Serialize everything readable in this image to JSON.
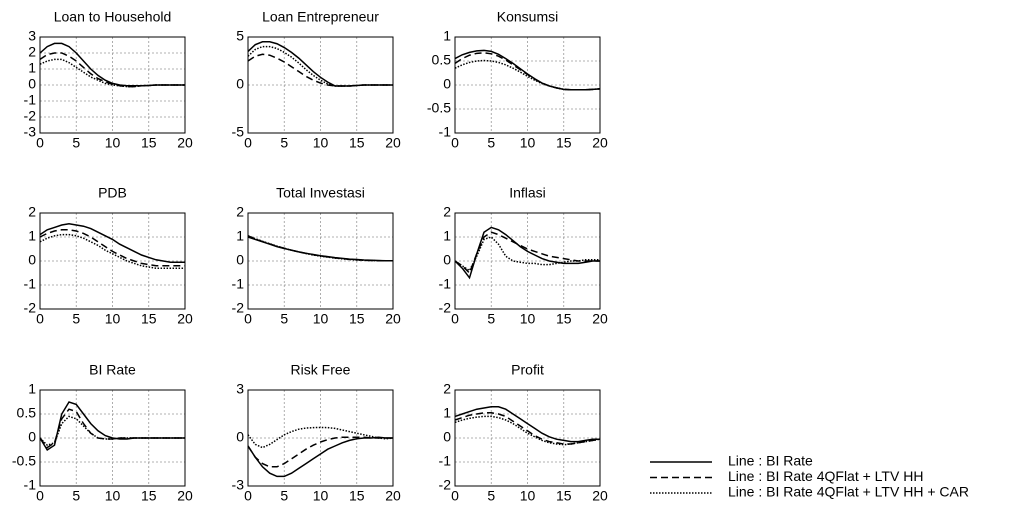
{
  "chart_data": [
    {
      "type": "line",
      "title": "Loan to Household",
      "x": [
        0,
        1,
        2,
        3,
        4,
        5,
        6,
        7,
        8,
        9,
        10,
        11,
        12,
        13,
        14,
        15,
        16,
        17,
        18,
        19,
        20
      ],
      "xlim": [
        0,
        20
      ],
      "xticks": [
        0,
        5,
        10,
        15,
        20
      ],
      "ylim": [
        -3,
        3
      ],
      "yticks": [
        -3,
        -2,
        -1,
        0,
        1,
        2,
        3
      ],
      "grid": true,
      "series": [
        {
          "name": "Line : BI Rate",
          "dash": "solid",
          "color": "#000000",
          "values": [
            2.0,
            2.4,
            2.6,
            2.6,
            2.4,
            2.0,
            1.5,
            1.0,
            0.6,
            0.3,
            0.1,
            0,
            -0.05,
            -0.05,
            -0.05,
            -0.03,
            0,
            0,
            0,
            0,
            0
          ]
        },
        {
          "name": "Line : BI Rate 4QFlat + LTV HH",
          "dash": "dashed",
          "color": "#000000",
          "values": [
            1.6,
            1.9,
            2.0,
            2.0,
            1.8,
            1.5,
            1.1,
            0.7,
            0.4,
            0.2,
            0.05,
            -0.05,
            -0.1,
            -0.1,
            -0.05,
            -0.03,
            0,
            0,
            0,
            0,
            0
          ]
        },
        {
          "name": "Line : BI Rate 4QFlat + LTV HH + CAR",
          "dash": "dotted",
          "color": "#000000",
          "values": [
            1.3,
            1.5,
            1.6,
            1.6,
            1.4,
            1.1,
            0.8,
            0.5,
            0.3,
            0.1,
            0,
            -0.05,
            -0.1,
            -0.1,
            -0.05,
            -0.03,
            0,
            0,
            0,
            0,
            0
          ]
        }
      ]
    },
    {
      "type": "line",
      "title": "Loan Entrepreneur",
      "x": [
        0,
        1,
        2,
        3,
        4,
        5,
        6,
        7,
        8,
        9,
        10,
        11,
        12,
        13,
        14,
        15,
        16,
        17,
        18,
        19,
        20
      ],
      "xlim": [
        0,
        20
      ],
      "xticks": [
        0,
        5,
        10,
        15,
        20
      ],
      "ylim": [
        -5,
        5
      ],
      "yticks": [
        -5,
        0,
        5
      ],
      "grid": true,
      "series": [
        {
          "dash": "solid",
          "color": "#000000",
          "values": [
            3.5,
            4.2,
            4.5,
            4.5,
            4.3,
            3.9,
            3.4,
            2.8,
            2.1,
            1.4,
            0.8,
            0.3,
            -0.1,
            -0.1,
            -0.1,
            -0.05,
            0,
            0,
            0,
            0,
            0
          ]
        },
        {
          "dash": "dashed",
          "color": "#000000",
          "values": [
            2.5,
            3.0,
            3.2,
            3.1,
            2.8,
            2.4,
            1.9,
            1.4,
            0.9,
            0.5,
            0.2,
            0,
            -0.1,
            -0.1,
            -0.1,
            -0.05,
            0,
            0,
            0,
            0,
            0
          ]
        },
        {
          "dash": "dotted",
          "color": "#000000",
          "values": [
            3.0,
            3.7,
            4.0,
            4.0,
            3.8,
            3.4,
            2.9,
            2.3,
            1.6,
            1.0,
            0.5,
            0.1,
            -0.1,
            -0.1,
            -0.1,
            -0.05,
            0,
            0,
            0,
            0,
            0
          ]
        }
      ]
    },
    {
      "type": "line",
      "title": "Konsumsi",
      "x": [
        0,
        1,
        2,
        3,
        4,
        5,
        6,
        7,
        8,
        9,
        10,
        11,
        12,
        13,
        14,
        15,
        16,
        17,
        18,
        19,
        20
      ],
      "xlim": [
        0,
        20
      ],
      "xticks": [
        0,
        5,
        10,
        15,
        20
      ],
      "ylim": [
        -1,
        1
      ],
      "yticks": [
        -1,
        -0.5,
        0,
        0.5,
        1
      ],
      "grid": true,
      "series": [
        {
          "dash": "solid",
          "color": "#000000",
          "values": [
            0.55,
            0.63,
            0.68,
            0.71,
            0.72,
            0.7,
            0.64,
            0.55,
            0.45,
            0.34,
            0.23,
            0.13,
            0.04,
            -0.02,
            -0.06,
            -0.09,
            -0.1,
            -0.1,
            -0.1,
            -0.09,
            -0.08
          ]
        },
        {
          "dash": "dashed",
          "color": "#000000",
          "values": [
            0.45,
            0.55,
            0.62,
            0.66,
            0.67,
            0.65,
            0.6,
            0.52,
            0.42,
            0.32,
            0.22,
            0.12,
            0.04,
            -0.02,
            -0.06,
            -0.09,
            -0.1,
            -0.1,
            -0.1,
            -0.09,
            -0.08
          ]
        },
        {
          "dash": "dotted",
          "color": "#000000",
          "values": [
            0.35,
            0.42,
            0.47,
            0.5,
            0.51,
            0.5,
            0.47,
            0.42,
            0.35,
            0.27,
            0.18,
            0.1,
            0.03,
            -0.02,
            -0.06,
            -0.09,
            -0.1,
            -0.1,
            -0.1,
            -0.09,
            -0.08
          ]
        }
      ]
    },
    {
      "type": "line",
      "title": "PDB",
      "x": [
        0,
        1,
        2,
        3,
        4,
        5,
        6,
        7,
        8,
        9,
        10,
        11,
        12,
        13,
        14,
        15,
        16,
        17,
        18,
        19,
        20
      ],
      "xlim": [
        0,
        20
      ],
      "xticks": [
        0,
        5,
        10,
        15,
        20
      ],
      "ylim": [
        -2,
        2
      ],
      "yticks": [
        -2,
        -1,
        0,
        1,
        2
      ],
      "grid": true,
      "series": [
        {
          "dash": "solid",
          "color": "#000000",
          "values": [
            1.1,
            1.3,
            1.4,
            1.5,
            1.55,
            1.5,
            1.45,
            1.35,
            1.2,
            1.05,
            0.9,
            0.7,
            0.55,
            0.4,
            0.25,
            0.15,
            0.05,
            0,
            -0.05,
            -0.05,
            -0.05
          ]
        },
        {
          "dash": "dashed",
          "color": "#000000",
          "values": [
            1.0,
            1.15,
            1.25,
            1.3,
            1.3,
            1.25,
            1.15,
            1.0,
            0.8,
            0.6,
            0.4,
            0.25,
            0.1,
            0,
            -0.1,
            -0.15,
            -0.2,
            -0.2,
            -0.2,
            -0.2,
            -0.2
          ]
        },
        {
          "dash": "dotted",
          "color": "#000000",
          "values": [
            0.8,
            0.95,
            1.05,
            1.1,
            1.1,
            1.05,
            0.95,
            0.8,
            0.65,
            0.45,
            0.3,
            0.15,
            0,
            -0.1,
            -0.2,
            -0.25,
            -0.3,
            -0.3,
            -0.3,
            -0.3,
            -0.3
          ]
        }
      ]
    },
    {
      "type": "line",
      "title": "Total Investasi",
      "x": [
        0,
        1,
        2,
        3,
        4,
        5,
        6,
        7,
        8,
        9,
        10,
        11,
        12,
        13,
        14,
        15,
        16,
        17,
        18,
        19,
        20
      ],
      "xlim": [
        0,
        20
      ],
      "xticks": [
        0,
        5,
        10,
        15,
        20
      ],
      "ylim": [
        -2,
        2
      ],
      "yticks": [
        -2,
        -1,
        0,
        1,
        2
      ],
      "grid": true,
      "series": [
        {
          "dash": "solid",
          "color": "#000000",
          "values": [
            1.0,
            0.9,
            0.8,
            0.7,
            0.6,
            0.52,
            0.45,
            0.38,
            0.32,
            0.27,
            0.22,
            0.18,
            0.14,
            0.11,
            0.08,
            0.06,
            0.04,
            0.03,
            0.02,
            0.01,
            0.01
          ]
        },
        {
          "dash": "dashed",
          "color": "#000000",
          "values": [
            1.05,
            0.92,
            0.81,
            0.71,
            0.61,
            0.53,
            0.45,
            0.38,
            0.32,
            0.26,
            0.21,
            0.17,
            0.13,
            0.1,
            0.07,
            0.05,
            0.03,
            0.02,
            0.01,
            0.01,
            0.01
          ]
        },
        {
          "dash": "dotted",
          "color": "#000000",
          "values": [
            1.05,
            0.93,
            0.82,
            0.72,
            0.62,
            0.53,
            0.45,
            0.38,
            0.31,
            0.25,
            0.2,
            0.16,
            0.12,
            0.09,
            0.06,
            0.04,
            0.03,
            0.02,
            0.01,
            0.01,
            0.01
          ]
        }
      ]
    },
    {
      "type": "line",
      "title": "Inflasi",
      "x": [
        0,
        1,
        2,
        3,
        4,
        5,
        6,
        7,
        8,
        9,
        10,
        11,
        12,
        13,
        14,
        15,
        16,
        17,
        18,
        19,
        20
      ],
      "xlim": [
        0,
        20
      ],
      "xticks": [
        0,
        5,
        10,
        15,
        20
      ],
      "ylim": [
        -2,
        2
      ],
      "yticks": [
        -2,
        -1,
        0,
        1,
        2
      ],
      "grid": true,
      "series": [
        {
          "dash": "solid",
          "color": "#000000",
          "values": [
            0,
            -0.3,
            -0.7,
            0.3,
            1.2,
            1.4,
            1.3,
            1.1,
            0.85,
            0.6,
            0.4,
            0.25,
            0.1,
            0,
            -0.05,
            -0.1,
            -0.1,
            -0.1,
            -0.05,
            0,
            0
          ]
        },
        {
          "dash": "dashed",
          "color": "#000000",
          "values": [
            0,
            -0.2,
            -0.5,
            0.3,
            1.0,
            1.2,
            1.1,
            0.95,
            0.8,
            0.65,
            0.5,
            0.4,
            0.3,
            0.2,
            0.15,
            0.1,
            0.05,
            0,
            0,
            0,
            0
          ]
        },
        {
          "dash": "dotted",
          "color": "#000000",
          "values": [
            0,
            -0.2,
            -0.4,
            0.2,
            0.9,
            1.0,
            0.7,
            0.2,
            0,
            -0.05,
            -0.1,
            -0.1,
            -0.15,
            -0.15,
            -0.1,
            -0.05,
            0,
            0,
            0.05,
            0.05,
            0.05
          ]
        }
      ]
    },
    {
      "type": "line",
      "title": "BI Rate",
      "x": [
        0,
        1,
        2,
        3,
        4,
        5,
        6,
        7,
        8,
        9,
        10,
        11,
        12,
        13,
        14,
        15,
        16,
        17,
        18,
        19,
        20
      ],
      "xlim": [
        0,
        20
      ],
      "xticks": [
        0,
        5,
        10,
        15,
        20
      ],
      "ylim": [
        -1,
        1
      ],
      "yticks": [
        -1,
        -0.5,
        0,
        0.5,
        1
      ],
      "grid": true,
      "series": [
        {
          "dash": "solid",
          "color": "#000000",
          "values": [
            0,
            -0.25,
            -0.15,
            0.5,
            0.75,
            0.7,
            0.5,
            0.3,
            0.15,
            0.05,
            0,
            -0.02,
            -0.02,
            0,
            0,
            0,
            0,
            0,
            0,
            0,
            0
          ]
        },
        {
          "dash": "dashed",
          "color": "#000000",
          "values": [
            0,
            -0.2,
            -0.1,
            0.4,
            0.6,
            0.55,
            0.3,
            0.1,
            0,
            -0.02,
            -0.02,
            0,
            0,
            0,
            0,
            0,
            0,
            0,
            0,
            0,
            0
          ]
        },
        {
          "dash": "dotted",
          "color": "#000000",
          "values": [
            0,
            -0.15,
            -0.1,
            0.3,
            0.45,
            0.4,
            0.25,
            0.1,
            0,
            -0.02,
            -0.02,
            0,
            0,
            0,
            0,
            0,
            0,
            0,
            0,
            0,
            0
          ]
        }
      ]
    },
    {
      "type": "line",
      "title": "Risk Free",
      "x": [
        0,
        1,
        2,
        3,
        4,
        5,
        6,
        7,
        8,
        9,
        10,
        11,
        12,
        13,
        14,
        15,
        16,
        17,
        18,
        19,
        20
      ],
      "xlim": [
        0,
        20
      ],
      "xticks": [
        0,
        5,
        10,
        15,
        20
      ],
      "ylim": [
        -3,
        3
      ],
      "yticks": [
        -3,
        0,
        3
      ],
      "grid": true,
      "series": [
        {
          "dash": "solid",
          "color": "#000000",
          "values": [
            -0.5,
            -1.2,
            -1.8,
            -2.2,
            -2.4,
            -2.4,
            -2.2,
            -1.9,
            -1.6,
            -1.3,
            -1.0,
            -0.7,
            -0.5,
            -0.3,
            -0.15,
            -0.05,
            0,
            0,
            0.05,
            0,
            0
          ]
        },
        {
          "dash": "dashed",
          "color": "#000000",
          "values": [
            -0.5,
            -1.2,
            -1.6,
            -1.8,
            -1.8,
            -1.6,
            -1.3,
            -1.0,
            -0.7,
            -0.45,
            -0.25,
            -0.1,
            0,
            0.05,
            0.05,
            0.05,
            0.05,
            0,
            0,
            0,
            0
          ]
        },
        {
          "dash": "dotted",
          "color": "#000000",
          "values": [
            0.2,
            -0.4,
            -0.6,
            -0.4,
            -0.1,
            0.2,
            0.4,
            0.55,
            0.62,
            0.65,
            0.66,
            0.65,
            0.6,
            0.5,
            0.4,
            0.3,
            0.2,
            0.1,
            0,
            -0.05,
            0
          ]
        }
      ]
    },
    {
      "type": "line",
      "title": "Profit",
      "x": [
        0,
        1,
        2,
        3,
        4,
        5,
        6,
        7,
        8,
        9,
        10,
        11,
        12,
        13,
        14,
        15,
        16,
        17,
        18,
        19,
        20
      ],
      "xlim": [
        0,
        20
      ],
      "xticks": [
        0,
        5,
        10,
        15,
        20
      ],
      "ylim": [
        -2,
        2
      ],
      "yticks": [
        -2,
        -1,
        0,
        1,
        2
      ],
      "grid": true,
      "series": [
        {
          "dash": "solid",
          "color": "#000000",
          "values": [
            0.9,
            1.0,
            1.1,
            1.2,
            1.25,
            1.3,
            1.3,
            1.2,
            1.0,
            0.8,
            0.6,
            0.4,
            0.2,
            0.05,
            -0.05,
            -0.1,
            -0.15,
            -0.15,
            -0.1,
            -0.05,
            -0.05
          ]
        },
        {
          "dash": "dashed",
          "color": "#000000",
          "values": [
            0.75,
            0.85,
            0.95,
            1.0,
            1.05,
            1.05,
            1.0,
            0.9,
            0.7,
            0.5,
            0.3,
            0.1,
            -0.05,
            -0.15,
            -0.2,
            -0.25,
            -0.25,
            -0.2,
            -0.15,
            -0.1,
            -0.05
          ]
        },
        {
          "dash": "dotted",
          "color": "#000000",
          "values": [
            0.65,
            0.75,
            0.82,
            0.87,
            0.9,
            0.9,
            0.85,
            0.75,
            0.6,
            0.4,
            0.2,
            0.05,
            -0.1,
            -0.2,
            -0.25,
            -0.28,
            -0.25,
            -0.2,
            -0.15,
            -0.1,
            -0.05
          ]
        }
      ]
    }
  ]
}
